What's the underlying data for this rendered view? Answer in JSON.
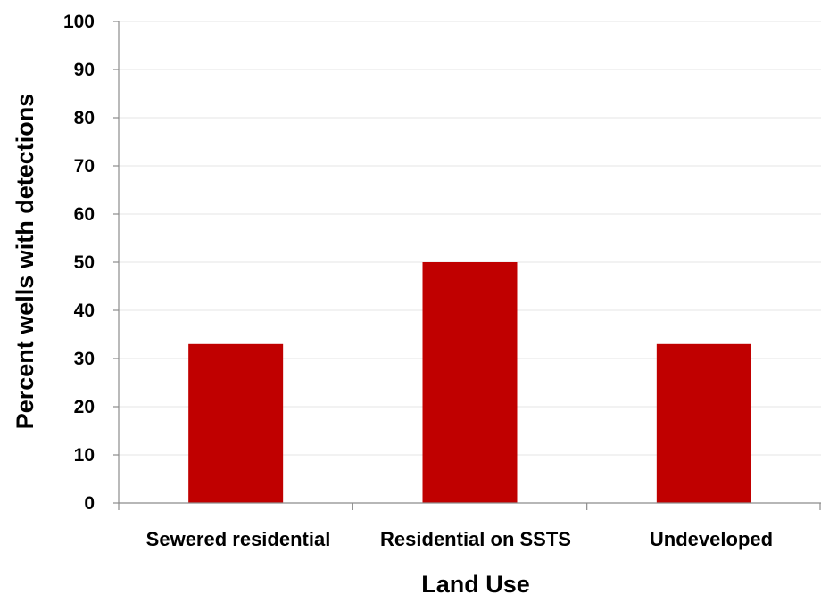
{
  "chart_data": {
    "type": "bar",
    "categories": [
      "Sewered residential",
      "Residential on SSTS",
      "Undeveloped"
    ],
    "values": [
      33,
      50,
      33
    ],
    "title": "",
    "xlabel": "Land Use",
    "ylabel": "Percent wells with detections",
    "ylim": [
      0,
      100
    ],
    "yticks": [
      0,
      10,
      20,
      30,
      40,
      50,
      60,
      70,
      80,
      90,
      100
    ],
    "grid": true,
    "legend": "none",
    "bar_color": "#c00000"
  }
}
